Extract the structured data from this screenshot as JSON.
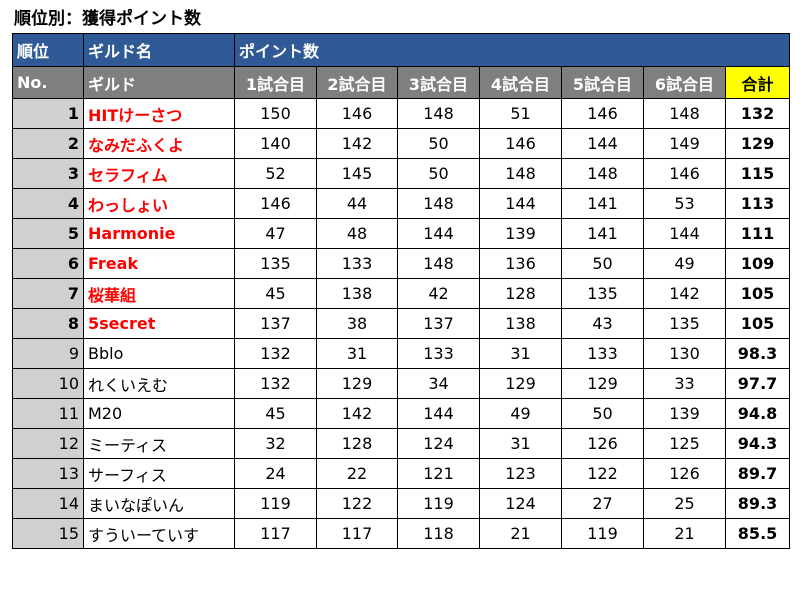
{
  "title": "順位別：獲得ポイント数",
  "header1": {
    "rank": "順位",
    "guild": "ギルド名",
    "points": "ポイント数"
  },
  "header2": {
    "no": "No.",
    "guild": "ギルド",
    "rounds": [
      "1試合目",
      "2試合目",
      "3試合目",
      "4試合目",
      "5試合目",
      "6試合目"
    ],
    "total": "合計"
  },
  "colors": {
    "header_blue": "#2f5a95",
    "header_gray": "#7f7f7f",
    "total_header": "#ffff00",
    "rank_bg": "#d0d0d0",
    "top_name": "#ff0000"
  },
  "rows": [
    {
      "no": "1",
      "guild": "HITけーさつ",
      "top": true,
      "scores": [
        "150",
        "146",
        "148",
        "51",
        "146",
        "148"
      ],
      "total": "132"
    },
    {
      "no": "2",
      "guild": "なみだふくよ",
      "top": true,
      "scores": [
        "140",
        "142",
        "50",
        "146",
        "144",
        "149"
      ],
      "total": "129"
    },
    {
      "no": "3",
      "guild": "セラフィム",
      "top": true,
      "scores": [
        "52",
        "145",
        "50",
        "148",
        "148",
        "146"
      ],
      "total": "115"
    },
    {
      "no": "4",
      "guild": "わっしょい",
      "top": true,
      "scores": [
        "146",
        "44",
        "148",
        "144",
        "141",
        "53"
      ],
      "total": "113"
    },
    {
      "no": "5",
      "guild": "Harmonie",
      "top": true,
      "scores": [
        "47",
        "48",
        "144",
        "139",
        "141",
        "144"
      ],
      "total": "111"
    },
    {
      "no": "6",
      "guild": "Freak",
      "top": true,
      "scores": [
        "135",
        "133",
        "148",
        "136",
        "50",
        "49"
      ],
      "total": "109"
    },
    {
      "no": "7",
      "guild": "桜華組",
      "top": true,
      "scores": [
        "45",
        "138",
        "42",
        "128",
        "135",
        "142"
      ],
      "total": "105"
    },
    {
      "no": "8",
      "guild": "5secret",
      "top": true,
      "scores": [
        "137",
        "38",
        "137",
        "138",
        "43",
        "135"
      ],
      "total": "105"
    },
    {
      "no": "9",
      "guild": "Bblo",
      "top": false,
      "scores": [
        "132",
        "31",
        "133",
        "31",
        "133",
        "130"
      ],
      "total": "98.3"
    },
    {
      "no": "10",
      "guild": "れくいえむ",
      "top": false,
      "scores": [
        "132",
        "129",
        "34",
        "129",
        "129",
        "33"
      ],
      "total": "97.7"
    },
    {
      "no": "11",
      "guild": "M20",
      "top": false,
      "scores": [
        "45",
        "142",
        "144",
        "49",
        "50",
        "139"
      ],
      "total": "94.8"
    },
    {
      "no": "12",
      "guild": "ミーティス",
      "top": false,
      "scores": [
        "32",
        "128",
        "124",
        "31",
        "126",
        "125"
      ],
      "total": "94.3"
    },
    {
      "no": "13",
      "guild": "サーフィス",
      "top": false,
      "scores": [
        "24",
        "22",
        "121",
        "123",
        "122",
        "126"
      ],
      "total": "89.7"
    },
    {
      "no": "14",
      "guild": "まいなぽいん",
      "top": false,
      "scores": [
        "119",
        "122",
        "119",
        "124",
        "27",
        "25"
      ],
      "total": "89.3"
    },
    {
      "no": "15",
      "guild": "すういーていす",
      "top": false,
      "scores": [
        "117",
        "117",
        "118",
        "21",
        "119",
        "21"
      ],
      "total": "85.5"
    }
  ]
}
